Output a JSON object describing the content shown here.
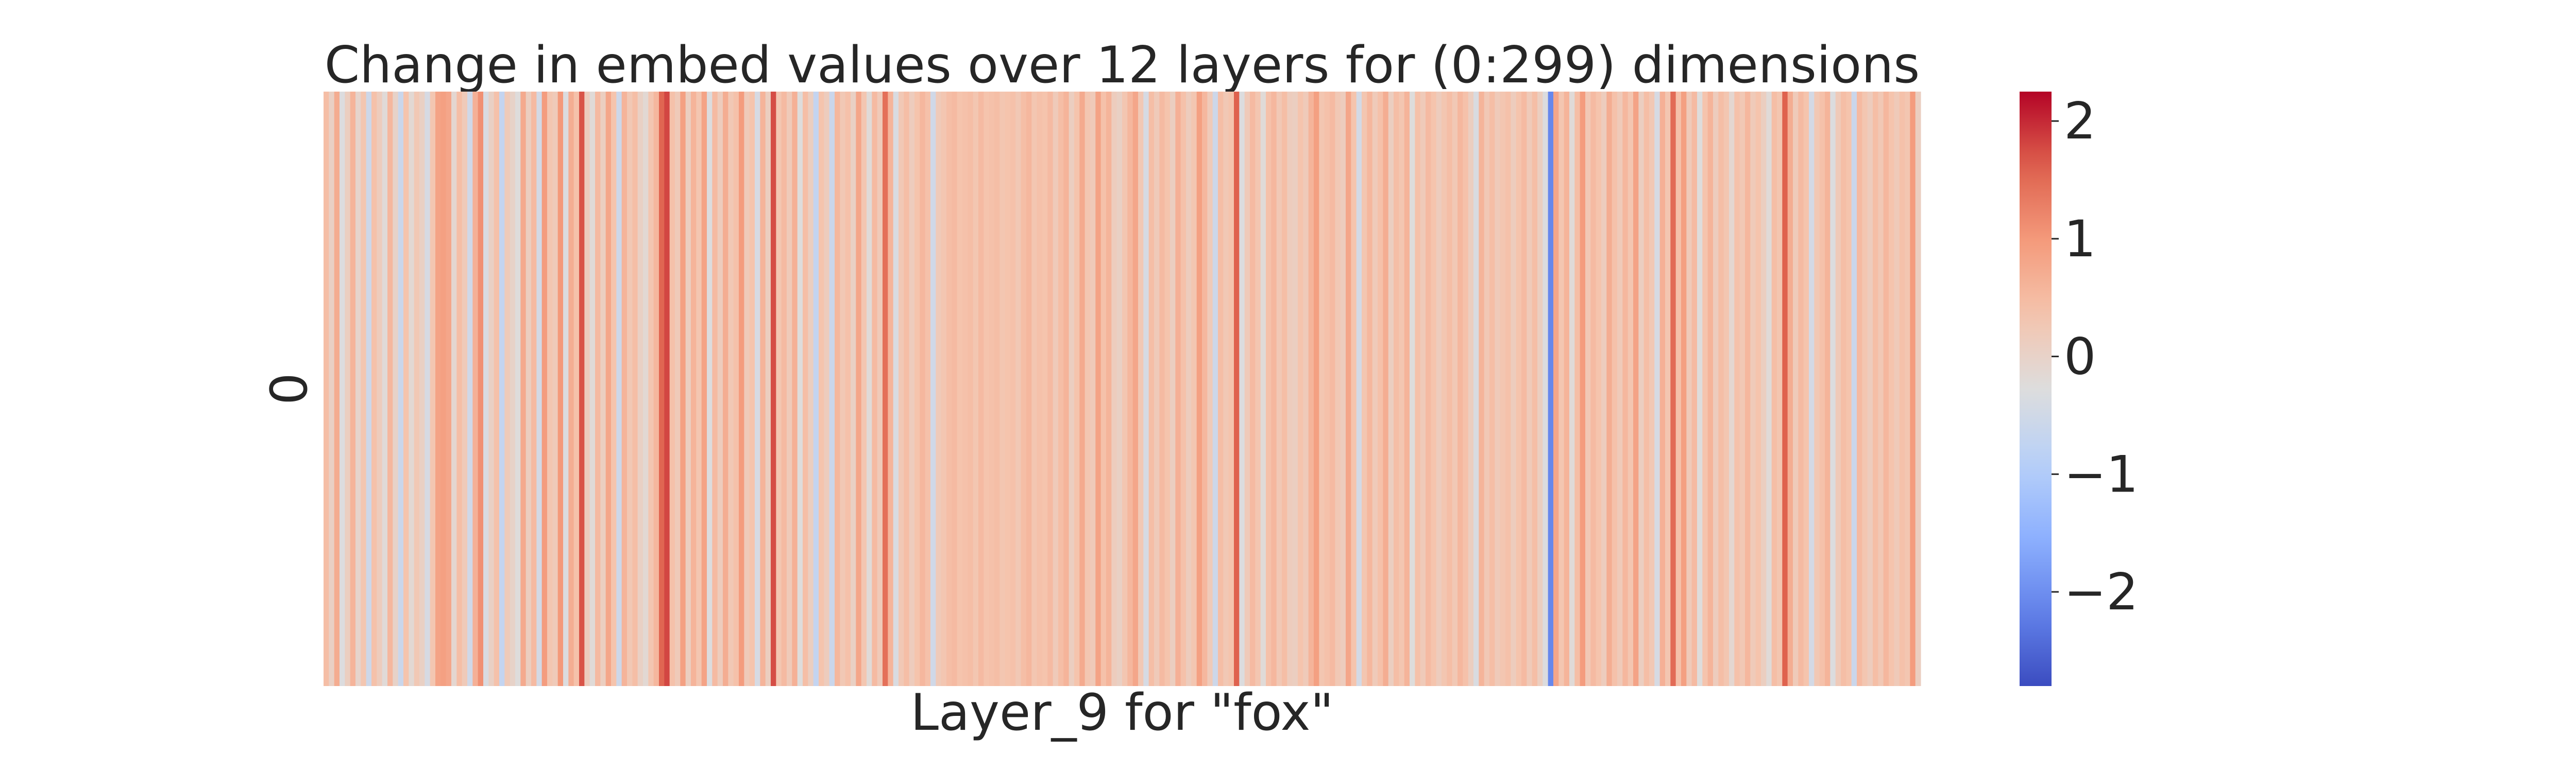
{
  "chart_data": {
    "type": "heatmap",
    "title": "Change in embed values over 12 layers for (0:299) dimensions",
    "xlabel": "Layer_9 for \"fox\"",
    "ylabel": "",
    "y_tick_labels": [
      "0"
    ],
    "x_range": [
      0,
      299
    ],
    "colormap": "coolwarm",
    "colorbar": {
      "vmin": -2.8,
      "vmax": 2.25,
      "ticks": [
        2,
        1,
        0,
        -1,
        -2
      ],
      "tick_labels": [
        "2",
        "1",
        "0",
        "−1",
        "−2"
      ]
    },
    "values": [
      0.45,
      0.05,
      0.72,
      -0.3,
      0.1,
      0.6,
      -0.05,
      0.3,
      -0.55,
      0.4,
      0.15,
      -0.2,
      0.55,
      0.0,
      -0.6,
      0.35,
      -0.15,
      0.25,
      0.05,
      -0.4,
      0.3,
      0.85,
      0.9,
      0.8,
      -0.1,
      0.45,
      0.2,
      -0.5,
      0.65,
      1.1,
      -0.35,
      0.05,
      0.4,
      -0.7,
      0.2,
      0.0,
      -0.25,
      0.75,
      0.1,
      0.5,
      -0.45,
      0.95,
      0.3,
      0.2,
      1.0,
      -0.3,
      0.7,
      0.4,
      1.7,
      0.15,
      -0.2,
      0.5,
      0.1,
      0.8,
      0.35,
      -0.55,
      0.6,
      0.25,
      0.45,
      0.05,
      -0.15,
      0.3,
      0.55,
      1.55,
      1.8,
      0.4,
      0.2,
      0.9,
      0.1,
      0.6,
      0.3,
      0.85,
      -0.3,
      0.5,
      0.15,
      0.7,
      0.25,
      0.4,
      0.95,
      0.2,
      0.35,
      -0.4,
      0.6,
      0.1,
      1.75,
      0.3,
      0.5,
      0.2,
      0.65,
      -0.25,
      0.45,
      0.1,
      -0.7,
      0.35,
      0.15,
      -0.6,
      0.55,
      0.25,
      0.4,
      0.05,
      0.8,
      0.3,
      -0.2,
      0.5,
      0.2,
      1.45,
      0.6,
      -0.35,
      0.25,
      0.45,
      0.15,
      0.35,
      0.55,
      0.4,
      -0.5,
      0.2,
      0.3,
      0.45,
      0.5,
      0.35,
      0.4,
      0.45,
      0.3,
      0.5,
      0.35,
      0.4,
      0.45,
      0.3,
      0.35,
      0.4,
      0.25,
      0.45,
      0.55,
      0.3,
      0.4,
      0.35,
      0.5,
      0.2,
      0.45,
      0.6,
      0.1,
      0.35,
      0.75,
      0.3,
      0.2,
      0.85,
      0.4,
      0.6,
      0.15,
      0.05,
      0.3,
      0.55,
      0.8,
      0.25,
      -0.4,
      0.45,
      0.2,
      0.5,
      0.35,
      0.1,
      0.65,
      0.4,
      0.15,
      0.3,
      0.9,
      0.55,
      0.2,
      -0.55,
      0.45,
      0.25,
      0.35,
      1.6,
      -0.3,
      0.2,
      0.5,
      0.3,
      -0.2,
      0.4,
      0.55,
      0.25,
      0.45,
      0.15,
      0.1,
      0.35,
      0.2,
      0.6,
      0.9,
      0.3,
      0.4,
      0.5,
      0.25,
      0.15,
      0.8,
      0.35,
      -0.45,
      0.3,
      0.55,
      0.2,
      0.4,
      0.7,
      0.1,
      0.45,
      0.3,
      0.6,
      -0.25,
      0.4,
      0.2,
      0.5,
      0.35,
      0.15,
      0.3,
      0.45,
      0.25,
      0.55,
      0.4,
      0.1,
      -0.35,
      0.6,
      0.25,
      0.45,
      0.2,
      0.3,
      0.4,
      0.15,
      0.35,
      0.5,
      0.2,
      0.45,
      0.1,
      -0.3,
      -2.1,
      0.8,
      0.3,
      0.6,
      -0.2,
      0.45,
      0.95,
      0.25,
      0.5,
      0.35,
      0.15,
      0.7,
      0.4,
      0.2,
      0.55,
      0.3,
      0.85,
      0.1,
      0.45,
      0.25,
      -0.4,
      0.65,
      0.3,
      1.5,
      0.4,
      0.9,
      0.2,
      0.5,
      -0.25,
      0.35,
      0.6,
      0.15,
      0.45,
      0.3,
      -0.1,
      0.4,
      0.25,
      0.55,
      0.2,
      0.35,
      0.1,
      -0.2,
      0.45,
      0.3,
      1.6,
      0.7,
      0.2,
      0.5,
      0.35,
      -0.45,
      0.25,
      0.4,
      0.6,
      -0.3,
      0.2,
      0.45,
      0.35,
      -0.6,
      0.5,
      0.3,
      0.15,
      0.45,
      0.25,
      0.55,
      0.35,
      0.2,
      0.4,
      0.3,
      0.95,
      0.1
    ]
  }
}
